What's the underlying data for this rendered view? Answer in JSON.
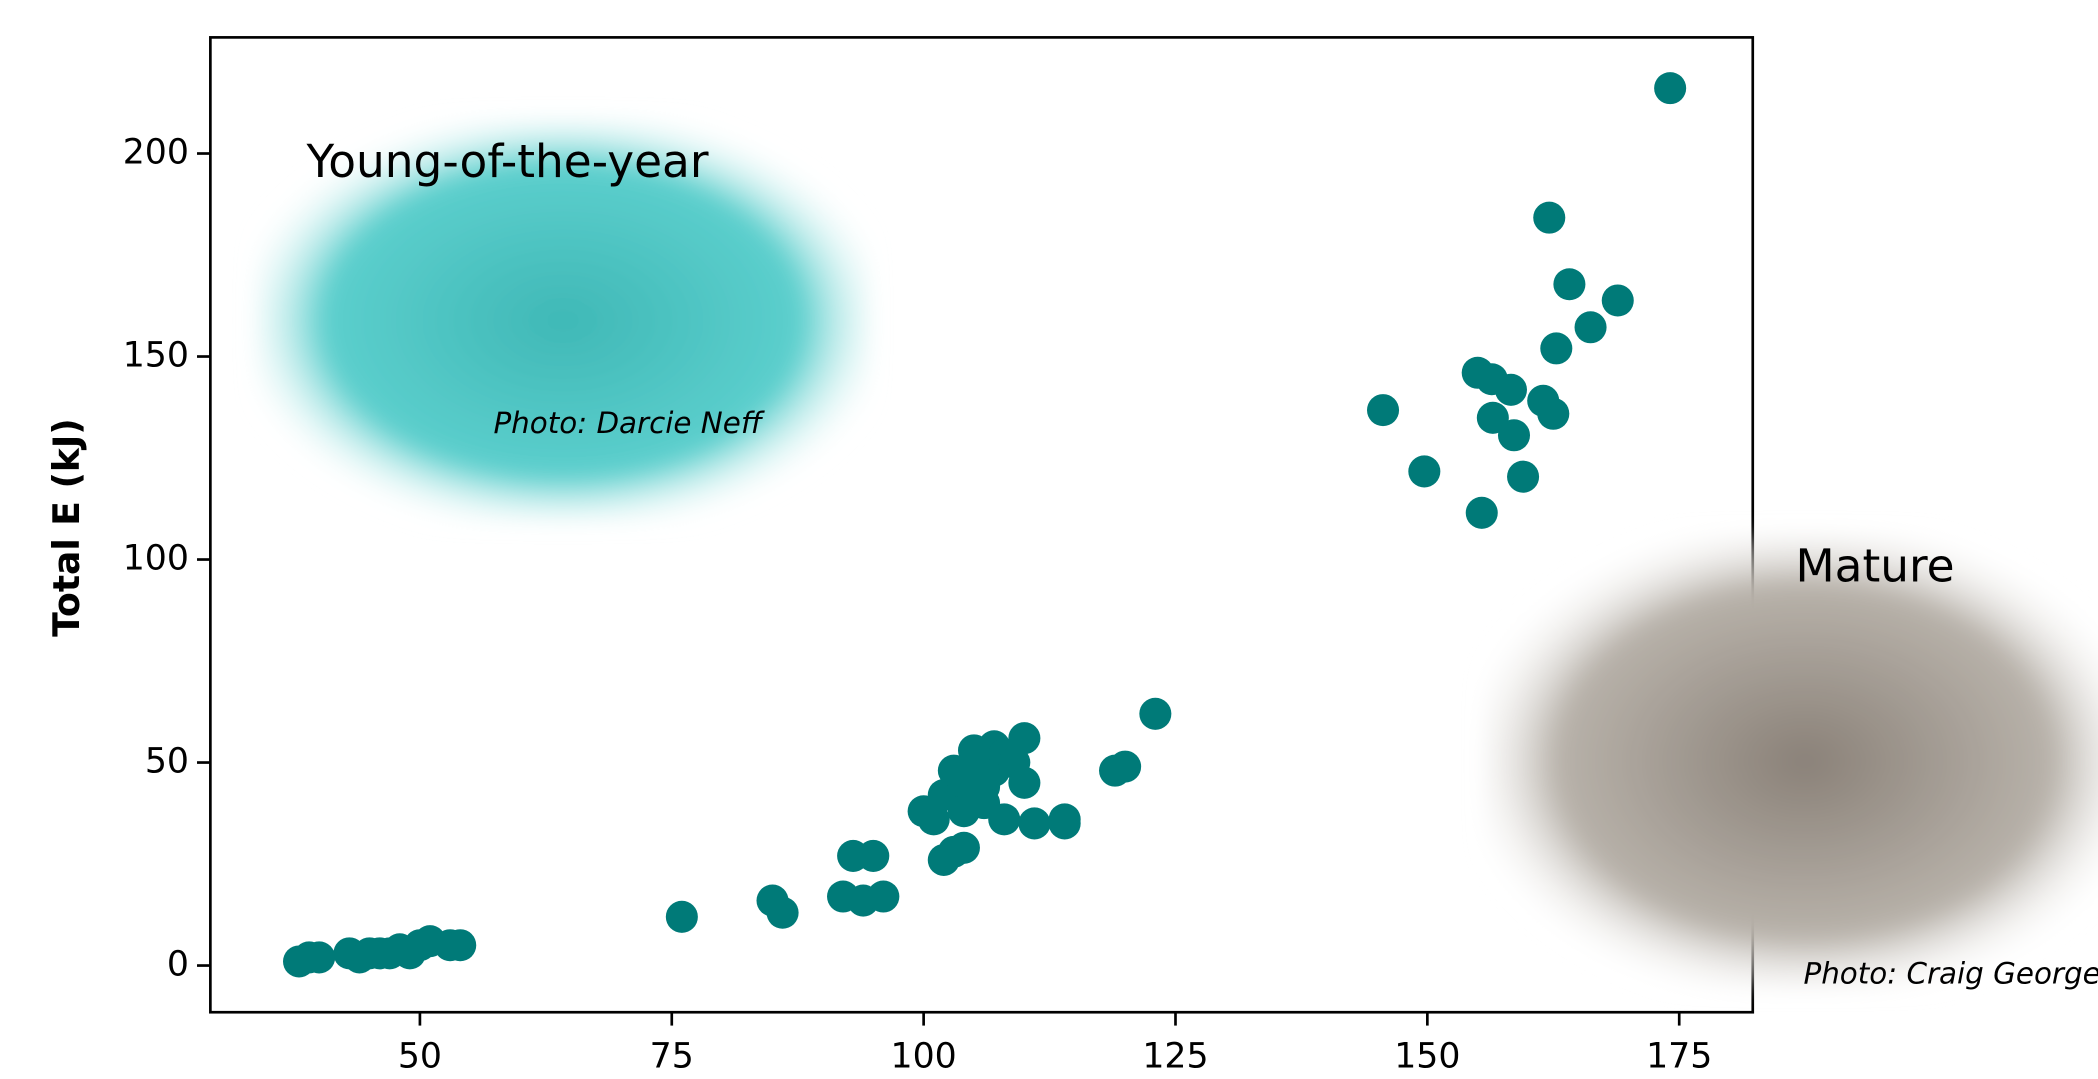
{
  "chart_data": {
    "type": "scatter",
    "y_label": "Total E (kJ)",
    "color": "#007a78",
    "xlim": [
      29.2,
      182.3
    ],
    "ylim": [
      -11.5,
      228.6
    ],
    "xticks": [
      50,
      75,
      100,
      125,
      150,
      175
    ],
    "yticks": [
      0,
      50,
      100,
      150,
      200
    ],
    "annotations": [
      "Young-of-the-year",
      "Photo: Darcie Neff",
      "Mature",
      "Photo: Craig George"
    ],
    "x": [
      38,
      39,
      40,
      43,
      44,
      45,
      46,
      47,
      48,
      49,
      50,
      51,
      53,
      54,
      76,
      85,
      86,
      92,
      93,
      94,
      95,
      96,
      100,
      101,
      102,
      103,
      104,
      102,
      103,
      104,
      105,
      105,
      106,
      106,
      107,
      107,
      108,
      108,
      109,
      110,
      110,
      111,
      114,
      114,
      119,
      120,
      123,
      104,
      106,
      145.6,
      149.7,
      155.4,
      155,
      156.4,
      156.5,
      158.3,
      158.6,
      159.5,
      161.5,
      162.5,
      162.8,
      162.1,
      164.1,
      166.2,
      168.9,
      174.1
    ],
    "y": [
      1,
      2,
      2,
      3,
      2,
      3,
      3,
      3,
      4,
      3,
      5,
      6,
      5,
      5,
      12,
      16,
      13,
      17,
      27,
      16,
      27,
      17,
      38,
      36,
      26,
      28,
      29,
      42,
      48,
      45,
      50,
      53,
      44,
      40,
      48,
      54,
      36,
      52,
      50,
      45,
      56,
      35,
      35,
      36,
      48,
      49,
      62,
      38,
      47,
      136.8,
      121.7,
      111.5,
      146,
      144.4,
      134.9,
      141.8,
      130.6,
      120.4,
      139.1,
      135.9,
      152,
      184.2,
      167.8,
      157.2,
      163.8,
      216.1
    ]
  }
}
